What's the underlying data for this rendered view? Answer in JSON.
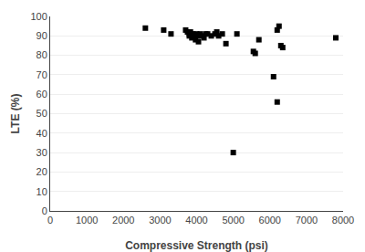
{
  "chart_data": {
    "type": "scatter",
    "x": [
      2600,
      3100,
      3300,
      3700,
      3750,
      3800,
      3800,
      3830,
      3850,
      3870,
      3900,
      3920,
      3950,
      3970,
      4000,
      4020,
      4050,
      4100,
      4150,
      4200,
      4250,
      4300,
      4400,
      4500,
      4550,
      4600,
      4700,
      4800,
      5000,
      5100,
      5550,
      5600,
      5700,
      6100,
      6200,
      6200,
      6250,
      6300,
      6350,
      7800
    ],
    "values": [
      94,
      93,
      91,
      93,
      92,
      91,
      90,
      92,
      91,
      89,
      91,
      90,
      90,
      88,
      91,
      90,
      87,
      91,
      90,
      89,
      91,
      91,
      90,
      91,
      92,
      90,
      91,
      86,
      30,
      91,
      82,
      81,
      88,
      69,
      56,
      93,
      95,
      85,
      84,
      89
    ],
    "xlabel": "Compressive Strength (psi)",
    "ylabel": "LTE (%)",
    "xlim": [
      0,
      8000
    ],
    "ylim": [
      0,
      100
    ],
    "xticks": [
      0,
      1000,
      2000,
      3000,
      4000,
      5000,
      6000,
      7000,
      8000
    ],
    "yticks": [
      0,
      10,
      20,
      30,
      40,
      50,
      60,
      70,
      80,
      90,
      100
    ],
    "color": "#000000",
    "marker": "square",
    "grid": "y"
  }
}
